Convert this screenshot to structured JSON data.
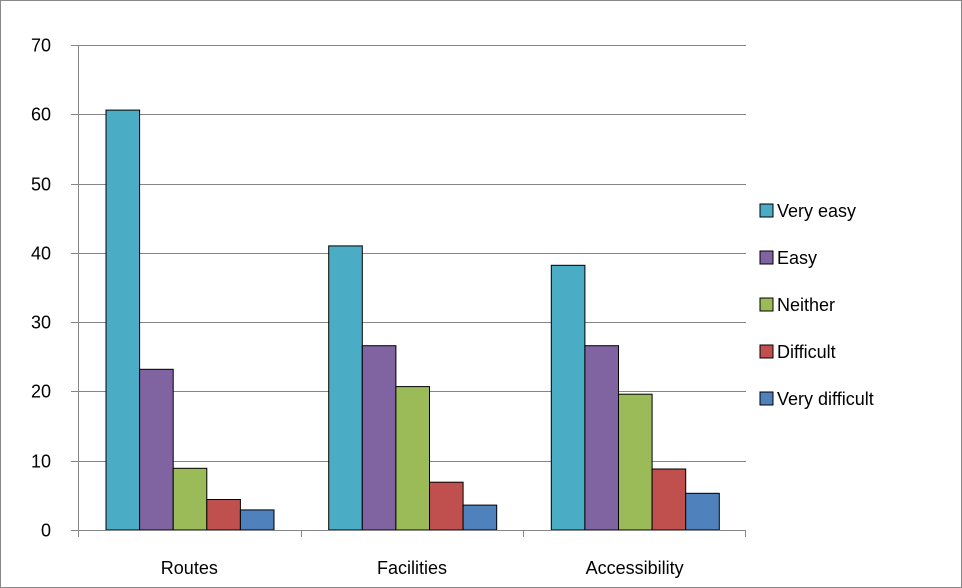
{
  "chart_data": {
    "type": "bar",
    "title": "",
    "xlabel": "",
    "ylabel": "",
    "categories": [
      "Routes",
      "Facilities",
      "Accessibility"
    ],
    "ylim": [
      0,
      70
    ],
    "yticks": [
      0,
      10,
      20,
      30,
      40,
      50,
      60,
      70
    ],
    "grid": true,
    "legend_position": "right",
    "series": [
      {
        "name": "Very easy",
        "color": "#4BACC6",
        "values": [
          60.6,
          41.0,
          38.2
        ]
      },
      {
        "name": "Easy",
        "color": "#8064A2",
        "values": [
          23.2,
          26.6,
          26.6
        ]
      },
      {
        "name": "Neither",
        "color": "#9BBB59",
        "values": [
          8.9,
          20.7,
          19.6
        ]
      },
      {
        "name": "Difficult",
        "color": "#C0504D",
        "values": [
          4.4,
          6.9,
          8.8
        ]
      },
      {
        "name": "Very difficult",
        "color": "#4F81BD",
        "values": [
          2.9,
          3.6,
          5.3
        ]
      }
    ]
  }
}
